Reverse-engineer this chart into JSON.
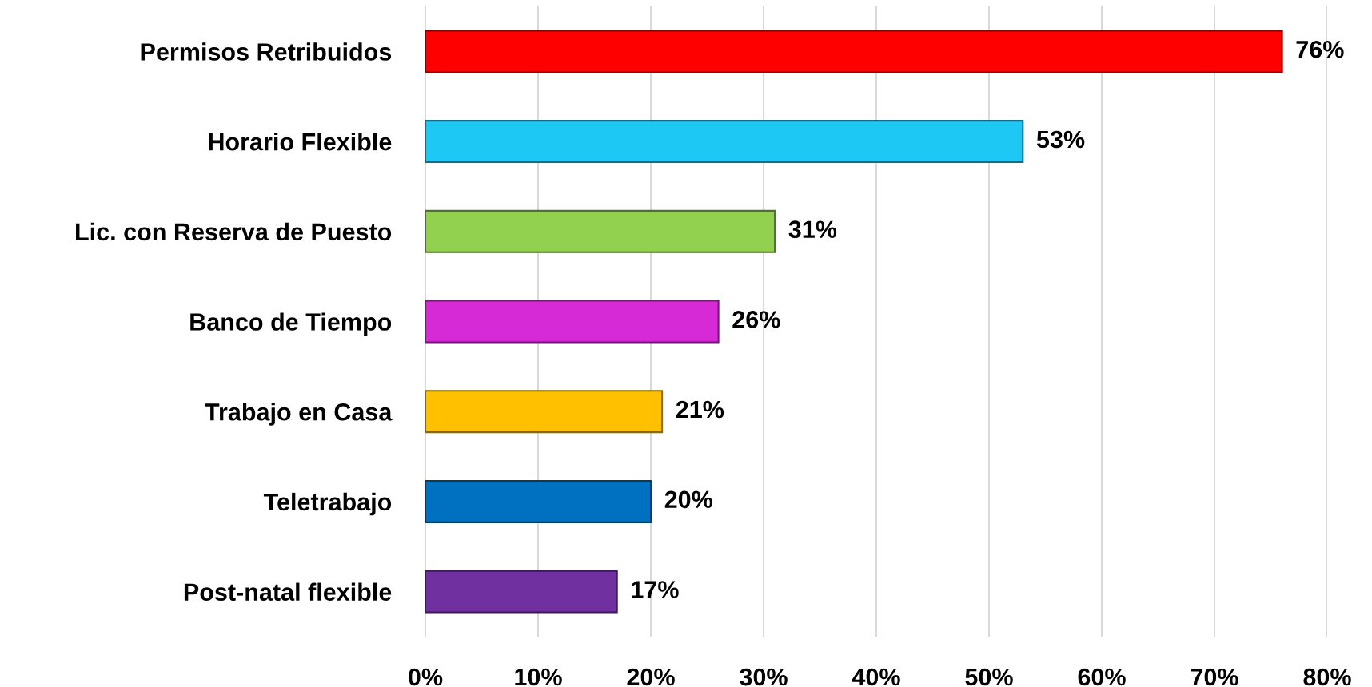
{
  "chart_data": {
    "type": "bar",
    "orientation": "horizontal",
    "categories": [
      "Permisos Retribuidos",
      "Horario Flexible",
      "Lic. con Reserva de Puesto",
      "Banco de Tiempo",
      "Trabajo en Casa",
      "Teletrabajo",
      "Post-natal flexible"
    ],
    "values": [
      76,
      53,
      31,
      26,
      21,
      20,
      17
    ],
    "colors": [
      "#ff0000",
      "#1ec8f5",
      "#92d050",
      "#d62ad6",
      "#ffc000",
      "#0070c0",
      "#7030a0"
    ],
    "value_labels": [
      "76%",
      "53%",
      "31%",
      "26%",
      "21%",
      "20%",
      "17%"
    ],
    "xlim": [
      0,
      80
    ],
    "xticks": [
      {
        "value": 0,
        "label": "0%"
      },
      {
        "value": 10,
        "label": "10%"
      },
      {
        "value": 20,
        "label": "20%"
      },
      {
        "value": 30,
        "label": "30%"
      },
      {
        "value": 40,
        "label": "40%"
      },
      {
        "value": 50,
        "label": "50%"
      },
      {
        "value": 60,
        "label": "60%"
      },
      {
        "value": 70,
        "label": "70%"
      },
      {
        "value": 80,
        "label": "80%"
      }
    ],
    "grid": "x"
  }
}
